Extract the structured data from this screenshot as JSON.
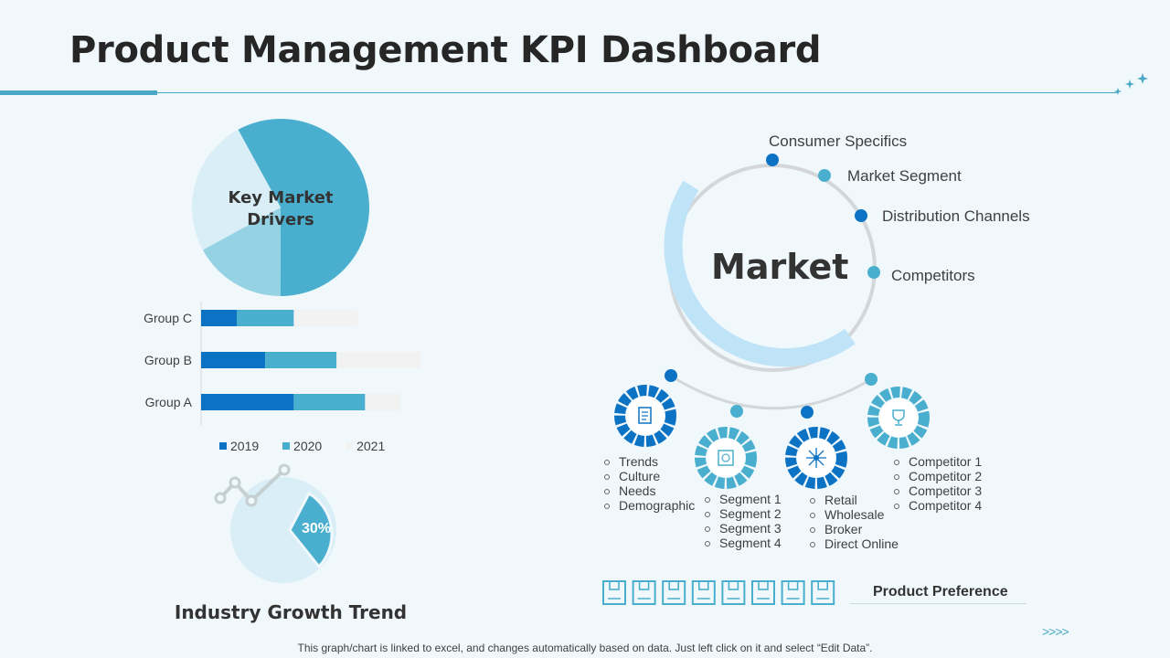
{
  "header": {
    "title": "Product Management KPI Dashboard"
  },
  "pie_drivers": {
    "label_line1": "Key Market",
    "label_line2": "Drivers",
    "slices": [
      {
        "value": 58,
        "color": "#4aafce"
      },
      {
        "value": 17,
        "color": "#94d2e4"
      },
      {
        "value": 25,
        "color": "#d9eef6"
      }
    ]
  },
  "chart_data": {
    "type": "bar",
    "orientation": "horizontal",
    "stacked": true,
    "categories": [
      "Group C",
      "Group B",
      "Group A"
    ],
    "series": [
      {
        "name": "2019",
        "values": [
          1,
          1.8,
          2.6
        ],
        "color": "#0b72c4"
      },
      {
        "name": "2020",
        "values": [
          1.6,
          2.0,
          2.0
        ],
        "color": "#4aafce"
      },
      {
        "name": "2021",
        "values": [
          1.8,
          2.9,
          1.0
        ],
        "color": "#f2f2f2"
      }
    ],
    "legend_position": "bottom"
  },
  "growth": {
    "title": "Industry Growth Trend",
    "percent_label": "30%",
    "percent_value": 30
  },
  "market": {
    "label": "Market",
    "items": [
      {
        "label": "Consumer Specifics"
      },
      {
        "label": "Market Segment"
      },
      {
        "label": "Distribution Channels"
      },
      {
        "label": "Competitors"
      }
    ],
    "lists": [
      {
        "items": [
          "Trends",
          "Culture",
          "Needs",
          "Demographic"
        ]
      },
      {
        "items": [
          "Segment 1",
          "Segment 2",
          "Segment 3",
          "Segment 4"
        ]
      },
      {
        "items": [
          "Retail",
          "Wholesale",
          "Broker",
          "Direct Online"
        ]
      },
      {
        "items": [
          "Competitor 1",
          "Competitor 2",
          "Competitor 3",
          "Competitor 4"
        ]
      }
    ]
  },
  "product_preference": {
    "label": "Product Preference",
    "icon_count": 8
  },
  "colors": {
    "accent": "#4aa8c6",
    "dark_blue": "#0b72c4",
    "mid_blue": "#4aafce",
    "light_ring": "#bfe3f7"
  },
  "icons": {
    "sparkle": "sparkle-icon",
    "chevrons": "chevron-right-icon",
    "document": "document-icon",
    "calendar": "calendar-icon",
    "network": "network-icon",
    "trophy": "trophy-icon",
    "box": "box-icon"
  },
  "footer": {
    "text": "This graph/chart is linked to excel, and changes automatically based on data. Just left click on it and select “Edit Data”.",
    "chevrons": ">>>>"
  }
}
